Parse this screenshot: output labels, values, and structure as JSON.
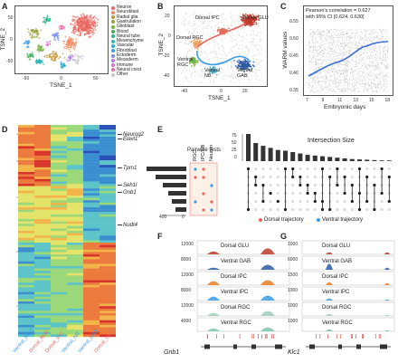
{
  "panels": {
    "A": {
      "letter": "A",
      "xlabel": "TSNE_1",
      "ylabel": "TSNE_2",
      "xticks": [
        "-50",
        "0",
        "50"
      ],
      "yticks": [
        "50",
        "0",
        "-50"
      ],
      "legend": [
        {
          "label": "Neuron",
          "color": "#e8675f"
        },
        {
          "label": "Neuroblast",
          "color": "#f08a5d"
        },
        {
          "label": "Radial glia",
          "color": "#c49a3a"
        },
        {
          "label": "Gastrulation",
          "color": "#9aa23a"
        },
        {
          "label": "Glioblast",
          "color": "#6fb33c"
        },
        {
          "label": "Blood",
          "color": "#3db25a"
        },
        {
          "label": "Neural tube",
          "color": "#2bb58d"
        },
        {
          "label": "Mesenchyme",
          "color": "#28b6b4"
        },
        {
          "label": "Vascular",
          "color": "#25b0d4"
        },
        {
          "label": "Fibroblast",
          "color": "#3a9be8"
        },
        {
          "label": "Ectoderm",
          "color": "#7c88ec"
        },
        {
          "label": "Mesoderm",
          "color": "#b07be6"
        },
        {
          "label": "Immune",
          "color": "#d96fd0"
        },
        {
          "label": "Neural crest",
          "color": "#ec6aa8"
        },
        {
          "label": "Other",
          "color": "#c8c8c8"
        }
      ]
    },
    "B": {
      "letter": "B",
      "xlabel": "TSNE_1",
      "ylabel": "TSNE_2",
      "xticks": [
        "-40",
        "0",
        "20"
      ],
      "yticks": [
        "20",
        "0",
        "-20",
        "-40"
      ],
      "clusters": {
        "dorsal_glu": "Dorsal GLU",
        "dorsal_ipc": "Dorsal IPC",
        "dorsal_rgc": "Dorsal RGC",
        "ventral_rgc": "Ventral RGC",
        "ventral_nb": "Ventral NB",
        "ventral_gab": "Ventral GAB"
      }
    },
    "C": {
      "letter": "C",
      "annotation_line1": "Pearson's correlation = 0.627",
      "annotation_line2": "with 95% CI [0.624, 0.630]",
      "xlabel": "Embryonic days",
      "ylabel": "WARM values",
      "xticks": [
        "7",
        "9",
        "11",
        "13",
        "15",
        "18"
      ],
      "yticks": [
        "0.55",
        "0.50",
        "0.45",
        "0.40",
        "0.35"
      ]
    },
    "D": {
      "letter": "D",
      "genes": [
        "Neurog2",
        "Elavl1",
        "Tpm1",
        "Seh1l",
        "Gnb1",
        "Nudt4"
      ],
      "columns": [
        {
          "label": "Ventral_RGC",
          "color": "#3a9be8"
        },
        {
          "label": "Dorsal_RGC",
          "color": "#e8675f"
        },
        {
          "label": "Dorsal_IPC",
          "color": "#e8675f"
        },
        {
          "label": "Ventral_NB",
          "color": "#3a9be8"
        },
        {
          "label": "Ventral_GAB",
          "color": "#3a9be8"
        },
        {
          "label": "Dorsal_GLU",
          "color": "#e8675f"
        }
      ]
    },
    "E": {
      "letter": "E",
      "title": "Intersection Size",
      "pairwise_title": "Pairwise tests",
      "pairwise_cols": [
        "RGC",
        "IPC/NB",
        "Neuron"
      ],
      "yticks": [
        "75",
        "50",
        "25",
        "0"
      ],
      "set_axis_ticks": [
        "400",
        "0"
      ],
      "legend_dorsal": "Dorsal trajectory",
      "legend_ventral": "Ventral trajectory",
      "colors": {
        "dorsal": "#e8675f",
        "ventral": "#3a9be8"
      }
    },
    "F": {
      "letter": "F",
      "gene": "Gnb1",
      "tracks": [
        {
          "label": "Dorsal GLU",
          "ytick": "12000",
          "color": "#c0392b"
        },
        {
          "label": "Ventral GAB",
          "ytick": "8000",
          "color": "#2c5aa0"
        },
        {
          "label": "Dorsal IPC",
          "ytick": "12000",
          "color": "#e67e22"
        },
        {
          "label": "Ventral IPC",
          "ytick": "8000",
          "color": "#3a9be8"
        },
        {
          "label": "Dorsal RGC",
          "ytick": "12000",
          "color": "#9fd0b8"
        },
        {
          "label": "Ventral RGC",
          "ytick": "4000",
          "color": "#7fc3b0"
        }
      ]
    },
    "G": {
      "letter": "G",
      "gene": "Klc1",
      "tracks": [
        {
          "label": "Dorsal GLU",
          "ytick": "1000",
          "color": "#c0392b"
        },
        {
          "label": "Ventral GAB",
          "ytick": "6000",
          "color": "#2c5aa0"
        },
        {
          "label": "Dorsal IPC",
          "ytick": "1500",
          "color": "#e67e22"
        },
        {
          "label": "Ventral IPC",
          "ytick": "1000",
          "color": "#3a9be8"
        },
        {
          "label": "Dorsal RGC",
          "ytick": "1000",
          "color": "#9fd0b8"
        },
        {
          "label": "Ventral RGC",
          "ytick": "1000",
          "color": "#7fc3b0"
        }
      ]
    }
  }
}
